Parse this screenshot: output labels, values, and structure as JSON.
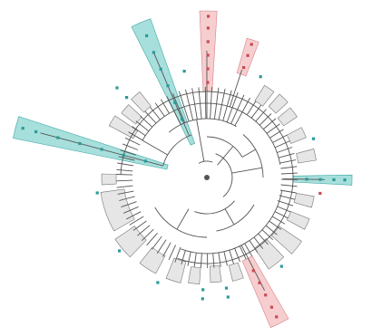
{
  "colors": {
    "teal_highlight": "#5fc4c0",
    "pink_highlight": "#eea5a8",
    "branch": "#555555",
    "collapsed_clade": "#e6e6e6",
    "teal_marker": "#2c9a9a",
    "pink_marker": "#c94a55"
  },
  "tree": {
    "layout": "circular",
    "highlighted_clades": [
      {
        "id": "teal-top-left",
        "color": "teal"
      },
      {
        "id": "pink-top",
        "color": "pink"
      },
      {
        "id": "pink-top-right",
        "color": "pink"
      },
      {
        "id": "teal-left",
        "color": "teal"
      },
      {
        "id": "teal-right",
        "color": "teal"
      },
      {
        "id": "pink-bottom",
        "color": "pink"
      }
    ]
  }
}
